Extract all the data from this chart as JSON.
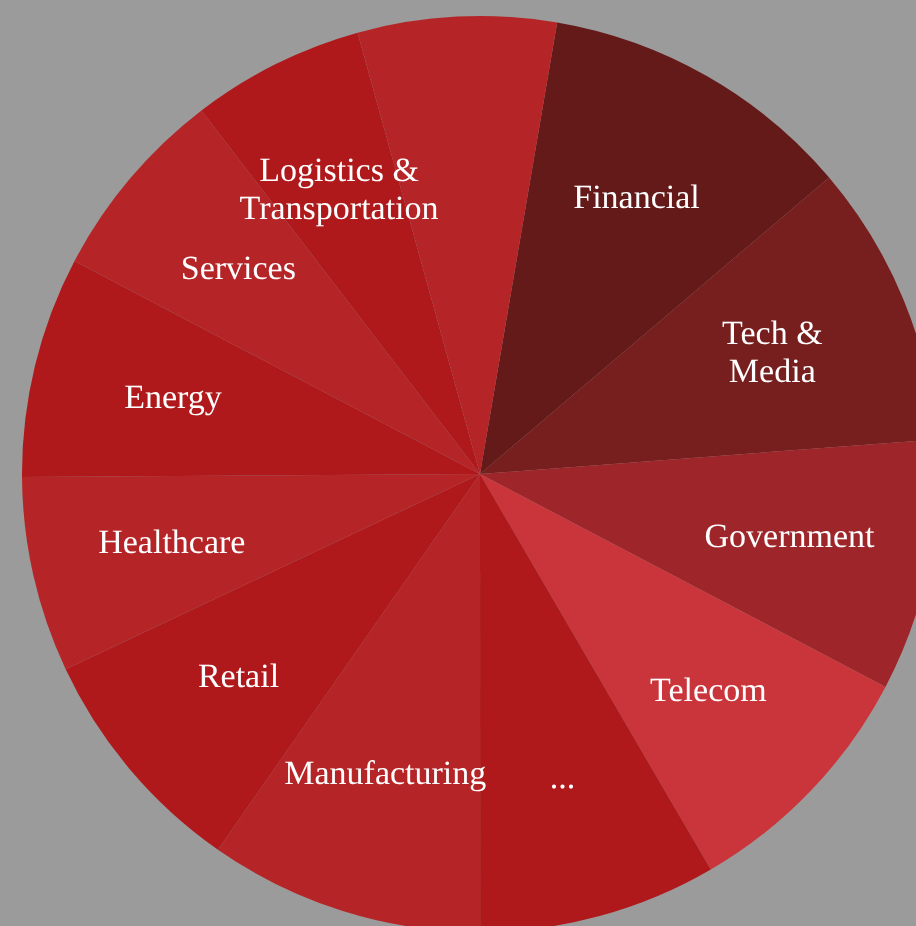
{
  "chart_data": {
    "type": "pie",
    "categories": [
      "Financial",
      "Tech & Media",
      "Government",
      "Telecom",
      "...",
      "Manufacturing",
      "Retail",
      "Healthcare",
      "Energy",
      "Services",
      "Logistics & Transportation",
      null
    ],
    "values": [
      11.1,
      10.0,
      8.9,
      8.9,
      8.4,
      9.7,
      8.3,
      6.9,
      7.8,
      6.9,
      6.1,
      7.0
    ],
    "colors": [
      "#631a19",
      "#771e1e",
      "#9e262a",
      "#c9353a",
      "#b0191b",
      "#b52528",
      "#b0191b",
      "#b52528",
      "#b0191b",
      "#b52528",
      "#b0191b",
      "#b52528"
    ],
    "legend": false
  }
}
